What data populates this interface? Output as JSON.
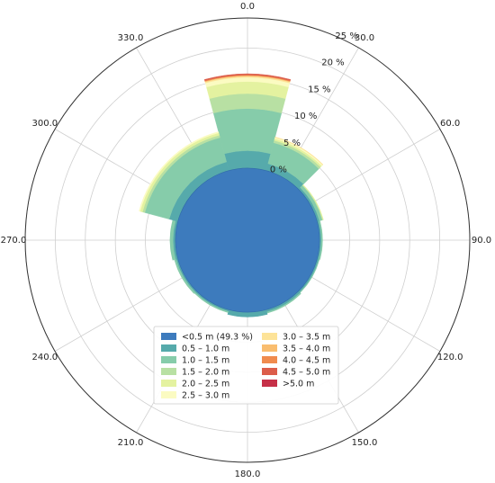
{
  "chart_data": {
    "type": "polar-stacked-bar",
    "title": "",
    "angle_labels": [
      "0.0",
      "30.0",
      "60.0",
      "90.0",
      "120.0",
      "150.0",
      "180.0",
      "210.0",
      "240.0",
      "270.0",
      "300.0",
      "330.0"
    ],
    "radial_tick_values": [
      0,
      5,
      10,
      15,
      20,
      25
    ],
    "radial_tick_labels": [
      "0 %",
      "5 %",
      "10 %",
      "15 %",
      "20 %",
      "25 %"
    ],
    "radial_zero_offset": 12,
    "direction_sectors": [
      {
        "start": 345,
        "end": 15
      },
      {
        "start": 15,
        "end": 45
      },
      {
        "start": 45,
        "end": 75
      },
      {
        "start": 75,
        "end": 105
      },
      {
        "start": 105,
        "end": 135
      },
      {
        "start": 135,
        "end": 165
      },
      {
        "start": 165,
        "end": 195
      },
      {
        "start": 195,
        "end": 225
      },
      {
        "start": 225,
        "end": 255
      },
      {
        "start": 255,
        "end": 285
      },
      {
        "start": 285,
        "end": 315
      },
      {
        "start": 315,
        "end": 345
      }
    ],
    "calm_center_percent": 49.3,
    "series": [
      {
        "name": "<0.5 m (49.3 %)",
        "color": "#3d7bbd",
        "values": [
          0,
          0,
          0,
          0,
          0,
          0,
          0,
          0,
          0,
          0,
          0,
          0
        ]
      },
      {
        "name": "0.5 – 1.0 m",
        "color": "#56aaab",
        "values": [
          2.9,
          1.2,
          0.4,
          0.3,
          0.3,
          0.4,
          0.8,
          0.3,
          0.3,
          0.4,
          1.5,
          1.5
        ]
      },
      {
        "name": "1.0 – 1.5 m",
        "color": "#86ccaa",
        "values": [
          7.0,
          3.6,
          0.5,
          0.2,
          0.1,
          0.2,
          0.0,
          0.2,
          0.3,
          0.5,
          4.2,
          4.2
        ]
      },
      {
        "name": "1.5 – 2.0 m",
        "color": "#b8e0a3",
        "values": [
          2.5,
          0.4,
          0.1,
          0,
          0,
          0,
          0,
          0,
          0,
          0,
          0.4,
          0.4
        ]
      },
      {
        "name": "2.0 – 2.5 m",
        "color": "#e4f2a0",
        "values": [
          2.0,
          0.3,
          0.1,
          0,
          0,
          0,
          0,
          0,
          0,
          0,
          0.4,
          0.4
        ]
      },
      {
        "name": "2.5 – 3.0 m",
        "color": "#fbfbc2",
        "values": [
          0.7,
          0.2,
          0,
          0,
          0,
          0,
          0,
          0,
          0,
          0,
          0.2,
          0.2
        ]
      },
      {
        "name": "3.0 – 3.5 m",
        "color": "#fde398",
        "values": [
          0.2,
          0.1,
          0,
          0,
          0,
          0,
          0,
          0,
          0,
          0,
          0,
          0
        ]
      },
      {
        "name": "3.5 – 4.0 m",
        "color": "#f9bd6f",
        "values": [
          0.1,
          0,
          0,
          0,
          0,
          0,
          0,
          0,
          0,
          0,
          0,
          0
        ]
      },
      {
        "name": "4.0 – 4.5 m",
        "color": "#f08b4e",
        "values": [
          0.1,
          0,
          0,
          0,
          0,
          0,
          0,
          0,
          0,
          0,
          0,
          0
        ]
      },
      {
        "name": "4.5 – 5.0 m",
        "color": "#dc5d4a",
        "values": [
          0.2,
          0,
          0,
          0,
          0,
          0,
          0,
          0,
          0,
          0,
          0,
          0
        ]
      },
      {
        "name": ">5.0 m",
        "color": "#c63048",
        "values": [
          0,
          0,
          0,
          0,
          0,
          0,
          0,
          0,
          0,
          0,
          0,
          0
        ]
      }
    ],
    "grid": true,
    "legend_placement": "bottom-center"
  }
}
